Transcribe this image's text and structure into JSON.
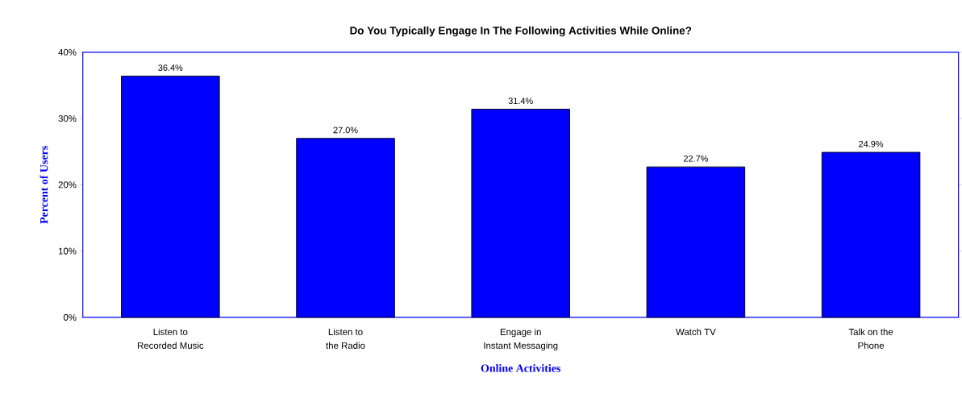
{
  "chart_data": {
    "type": "bar",
    "title": "Do You Typically Engage In The Following Activities While Online?",
    "xlabel": "Online Activities",
    "ylabel": "Percent of Users",
    "categories": [
      "Listen to\nRecorded Music",
      "Listen to\nthe Radio",
      "Engage in\nInstant Messaging",
      "Watch TV",
      "Talk on the\nPhone"
    ],
    "values": [
      36.4,
      27.0,
      31.4,
      22.7,
      24.9
    ],
    "value_labels": [
      "36.4%",
      "27.0%",
      "31.4%",
      "22.7%",
      "24.9%"
    ],
    "color": "#0000ff",
    "ylim": [
      0,
      40
    ],
    "yticks": [
      {
        "value": 0,
        "label": "0%"
      },
      {
        "value": 10,
        "label": "10%"
      },
      {
        "value": 20,
        "label": "20%"
      },
      {
        "value": 30,
        "label": "30%"
      },
      {
        "value": 40,
        "label": "40%"
      }
    ],
    "grid": false
  }
}
